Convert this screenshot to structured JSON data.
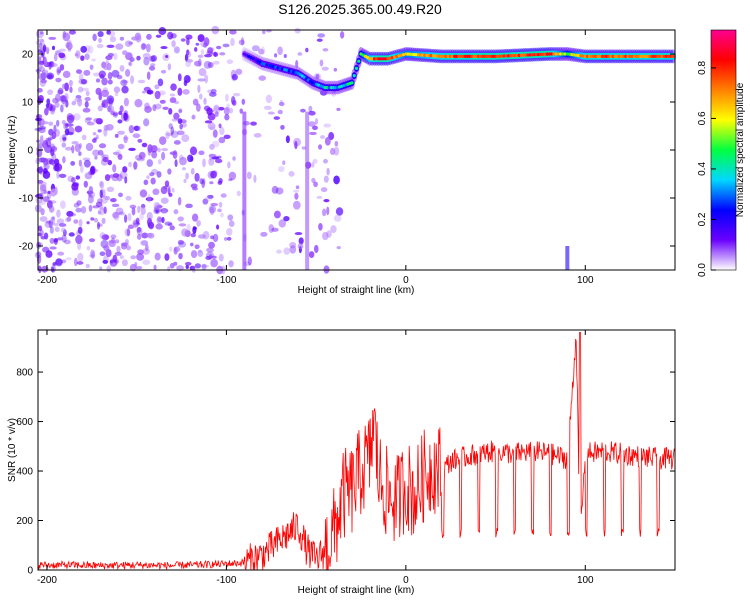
{
  "chart_data": [
    {
      "type": "heatmap",
      "title": "S126.2025.365.00.49.R20",
      "xlabel": "Height of straight line (km)",
      "ylabel": "Frequency (Hz)",
      "xlim": [
        -205,
        150
      ],
      "ylim": [
        -25,
        25
      ],
      "xticks": [
        -200,
        -100,
        0,
        100
      ],
      "yticks": [
        -20,
        -10,
        0,
        10,
        20
      ],
      "colorbar": {
        "label": "Normalized spectral amplitude",
        "range": [
          0,
          0.95
        ],
        "ticks": [
          0.0,
          0.2,
          0.4,
          0.6,
          0.8
        ],
        "colormap": [
          "#ffffff",
          "#6a00ff",
          "#0000ff",
          "#00d8ff",
          "#00ff40",
          "#ffff00",
          "#ff8000",
          "#ff0000",
          "#ff0090"
        ]
      },
      "ridge": {
        "x": [
          -90,
          -80,
          -70,
          -60,
          -52,
          -45,
          -38,
          -30,
          -25,
          -20,
          -15,
          -10,
          0,
          20,
          50,
          80,
          90,
          100,
          150
        ],
        "y": [
          20,
          18,
          17,
          16,
          14,
          13,
          13,
          14,
          20,
          19,
          19,
          19,
          20,
          19.5,
          19.5,
          20,
          20,
          19.5,
          19.5
        ],
        "amplitude": [
          0.15,
          0.25,
          0.25,
          0.3,
          0.3,
          0.35,
          0.35,
          0.4,
          0.45,
          0.7,
          0.8,
          0.8,
          0.6,
          0.75,
          0.8,
          0.8,
          0.5,
          0.75,
          0.75
        ]
      },
      "scattered_region": {
        "x": [
          -205,
          -35
        ],
        "y": [
          -25,
          25
        ],
        "amplitude": [
          0.05,
          0.15
        ]
      }
    },
    {
      "type": "line",
      "xlabel": "Height of straight line (km)",
      "ylabel": "SNR (10 * v/v)",
      "xlim": [
        -205,
        150
      ],
      "ylim": [
        0,
        970
      ],
      "xticks": [
        -200,
        -100,
        0,
        100
      ],
      "yticks": [
        0,
        200,
        400,
        600,
        800
      ],
      "color": "#ff0000",
      "series": [
        {
          "x": [
            -205,
            -190,
            -170,
            -150,
            -130,
            -110,
            -100,
            -90,
            -80,
            -70,
            -65,
            -60,
            -55,
            -50,
            -45,
            -40,
            -35,
            -30,
            -25,
            -20,
            -18,
            -15,
            -10,
            -5,
            0,
            5,
            10,
            15,
            20,
            25,
            30,
            40,
            50,
            60,
            70,
            80,
            90,
            95,
            97,
            100,
            110,
            120,
            130,
            140,
            150
          ],
          "values": [
            20,
            20,
            18,
            20,
            18,
            22,
            25,
            30,
            60,
            120,
            150,
            180,
            80,
            40,
            80,
            150,
            300,
            320,
            400,
            450,
            600,
            380,
            300,
            280,
            350,
            300,
            380,
            420,
            400,
            440,
            450,
            470,
            480,
            470,
            480,
            470,
            450,
            960,
            100,
            470,
            480,
            470,
            460,
            450,
            450
          ]
        }
      ],
      "dip_spacing": 10,
      "dip_low": 130
    }
  ]
}
